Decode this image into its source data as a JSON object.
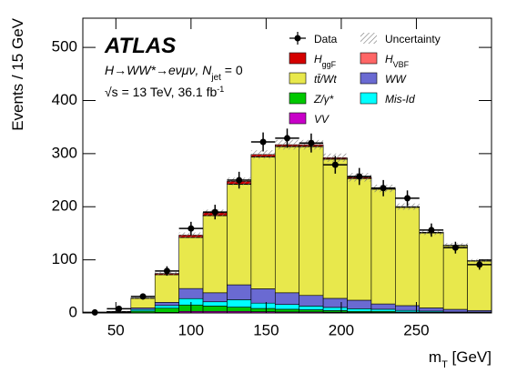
{
  "chart_data": {
    "type": "histogram",
    "title": "ATLAS",
    "annotations": {
      "process": [
        "H→WW*→eνμν, N",
        "jet",
        " = 0"
      ],
      "energy": [
        "√s = 13 TeV, 36.1 fb",
        "-1"
      ]
    },
    "x_label": [
      "m",
      "T",
      " [GeV]"
    ],
    "y_label": "Events / 15 GeV",
    "bins": [
      28,
      44,
      60,
      76,
      92,
      108,
      124,
      140,
      156,
      172,
      188,
      204,
      220,
      236,
      252,
      268,
      284,
      300
    ],
    "xlim": [
      28,
      300
    ],
    "ylim": [
      0,
      555
    ],
    "xticks": [
      50,
      100,
      150,
      200,
      250
    ],
    "yticks": [
      0,
      100,
      200,
      300,
      400,
      500
    ],
    "data": {
      "name": "Data",
      "color": "#000000",
      "values": [
        1,
        8,
        31,
        79,
        159,
        190,
        250,
        322,
        329,
        320,
        279,
        257,
        235,
        216,
        156,
        123,
        91
      ],
      "errors": [
        1,
        2.8,
        5.6,
        8.9,
        12.6,
        13.8,
        15.8,
        17.9,
        18.1,
        17.9,
        16.7,
        16,
        15.3,
        14.7,
        12.5,
        11.1,
        9.5
      ]
    },
    "uncertainty": {
      "name": "Uncertainty",
      "values": [
        0,
        0.5,
        1.5,
        3,
        5,
        6,
        7,
        8,
        9,
        9,
        8,
        8,
        7,
        6,
        5,
        4,
        3
      ]
    },
    "series": [
      {
        "name": "H",
        "sub": "ggF",
        "color": "#d40000",
        "values": [
          0,
          0,
          0.5,
          2,
          4,
          5,
          5,
          4,
          3,
          3,
          2,
          2,
          1,
          1,
          1,
          0.5,
          0.5
        ]
      },
      {
        "name": "H",
        "sub": "VBF",
        "color": "#ff6666",
        "values": [
          0,
          0,
          0.1,
          0.3,
          0.5,
          0.6,
          0.7,
          0.8,
          0.8,
          0.8,
          0.7,
          0.6,
          0.5,
          0.4,
          0.4,
          0.3,
          0.3
        ]
      },
      {
        "name": "tt̄/Wt",
        "color": "#e8e84c",
        "values": [
          0,
          0,
          18,
          52,
          96,
          145,
          189,
          248,
          275,
          280,
          262,
          229,
          216,
          185,
          141,
          120,
          93
        ]
      },
      {
        "name": "WW",
        "color": "#6a6ad2",
        "values": [
          0,
          1,
          3,
          6,
          19,
          17,
          28,
          27,
          22,
          20,
          17,
          16,
          10,
          9,
          6,
          5,
          3
        ]
      },
      {
        "name": "Z/γ*",
        "color": "#00c800",
        "values": [
          0,
          1,
          3,
          8,
          12,
          10,
          8,
          6,
          5,
          4,
          3,
          2,
          2,
          1,
          1,
          0.5,
          0.5
        ]
      },
      {
        "name": "Mis-Id",
        "color": "#00ffff",
        "values": [
          0,
          1,
          3,
          5,
          12,
          8,
          14,
          10,
          9,
          7,
          6,
          5,
          4,
          3,
          2,
          1,
          1
        ]
      },
      {
        "name": "VV",
        "color": "#c800c8",
        "values": [
          0,
          0,
          0.5,
          1,
          3,
          3,
          3,
          2.5,
          2,
          2,
          1.5,
          1,
          1,
          0.8,
          0.5,
          0.3,
          0.2
        ]
      }
    ]
  }
}
